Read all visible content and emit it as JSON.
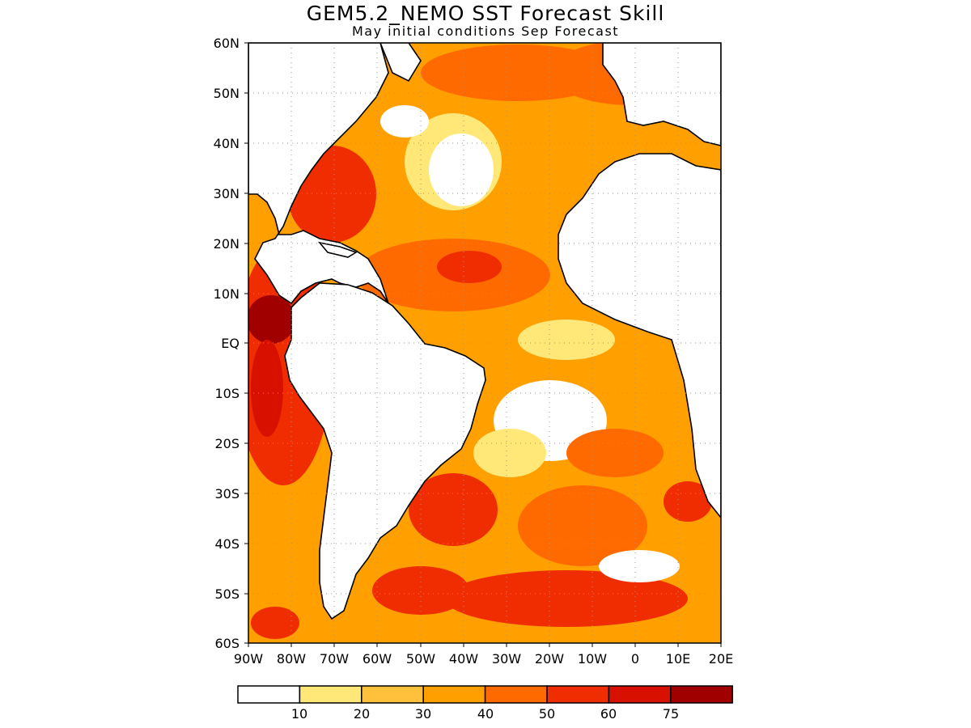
{
  "title": "GEM5.2_NEMO SST Forecast Skill",
  "subtitle": "May initial conditions  Sep Forecast",
  "y_labels": [
    "60N",
    "50N",
    "40N",
    "30N",
    "20N",
    "10N",
    "EQ",
    "10S",
    "20S",
    "30S",
    "40S",
    "50S",
    "60S"
  ],
  "x_labels": [
    "90W",
    "80W",
    "70W",
    "60W",
    "50W",
    "40W",
    "30W",
    "20W",
    "10W",
    "0",
    "10E",
    "20E"
  ],
  "colorbar": {
    "colors": [
      "#ffffff",
      "#ffe878",
      "#ffc13c",
      "#ffa000",
      "#ff6a00",
      "#f02d00",
      "#d71000",
      "#a00000"
    ],
    "labels": [
      "10",
      "20",
      "30",
      "40",
      "50",
      "60",
      "75"
    ]
  },
  "map_colors": {
    "land": "#ffffff",
    "coast": "#000000",
    "grid": "#999999"
  }
}
